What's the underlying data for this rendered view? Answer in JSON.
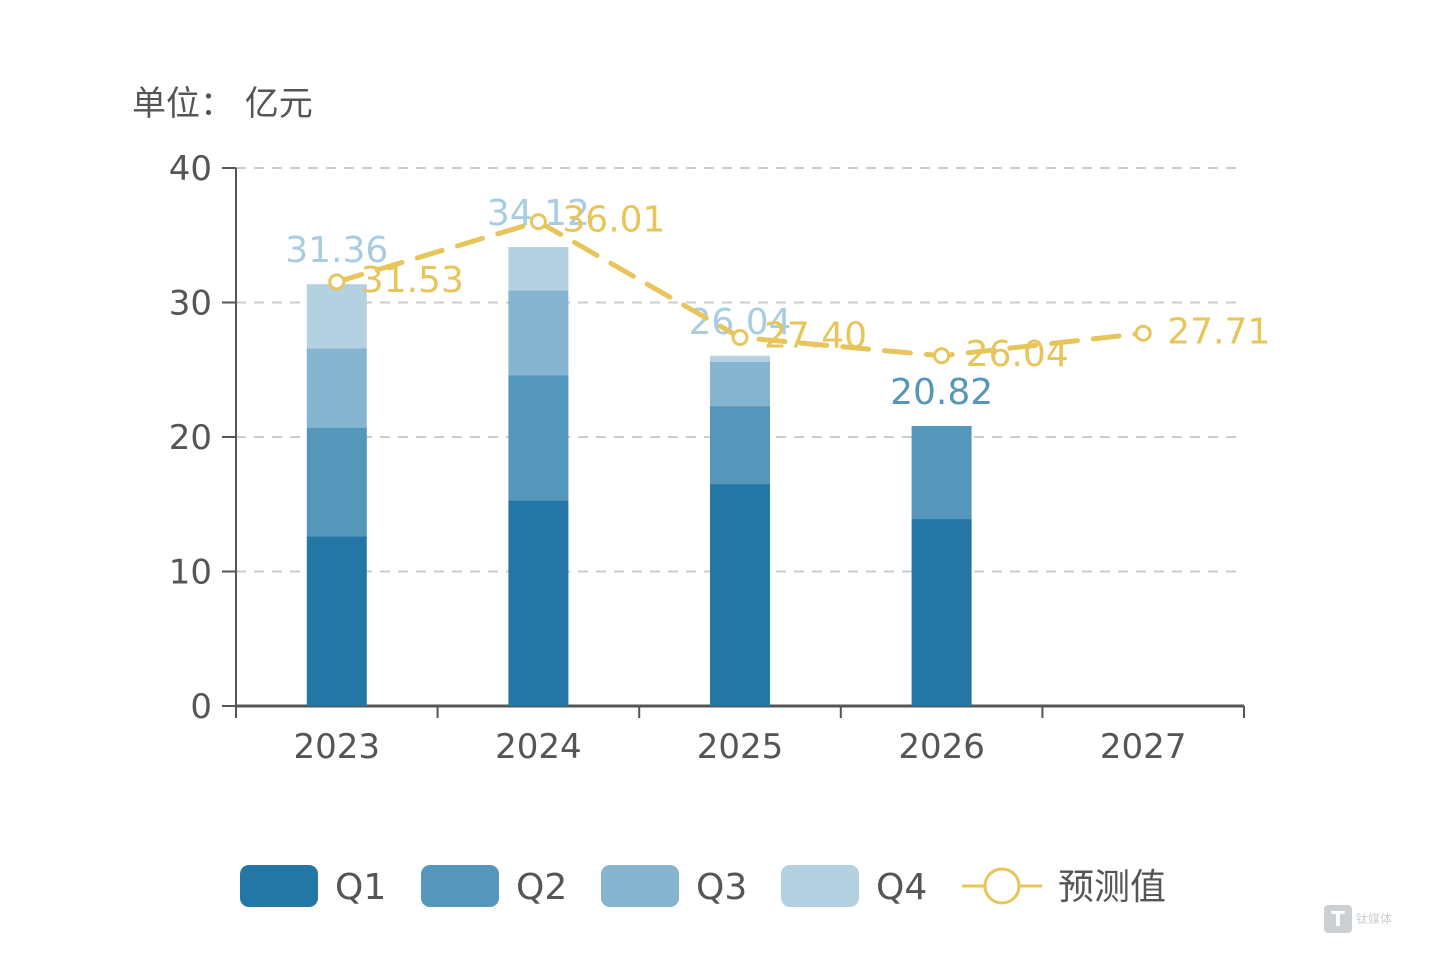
{
  "unit_label": "单位：  亿元",
  "watermark": {
    "logo_letter": "T",
    "text": "钛媒体"
  },
  "chart_data": {
    "type": "bar",
    "stacked": true,
    "categories": [
      "2023",
      "2024",
      "2025",
      "2026",
      "2027"
    ],
    "ylim": [
      0,
      40
    ],
    "yticks": [
      "0",
      "10",
      "20",
      "30",
      "40"
    ],
    "grid": true,
    "legend_position": "bottom",
    "series": [
      {
        "name": "Q1",
        "color": "#2477a4",
        "values": [
          12.6,
          15.3,
          16.5,
          13.9,
          null
        ]
      },
      {
        "name": "Q2",
        "color": "#5597bb",
        "values": [
          8.1,
          9.3,
          5.8,
          6.92,
          null
        ]
      },
      {
        "name": "Q3",
        "color": "#86b5cf",
        "values": [
          5.9,
          6.3,
          3.3,
          null,
          null
        ]
      },
      {
        "name": "Q4",
        "color": "#b3d1e1",
        "values": [
          4.76,
          3.22,
          0.44,
          null,
          null
        ]
      }
    ],
    "totals": [
      "31.36",
      "34.12",
      "26.04",
      "20.82",
      ""
    ],
    "totals_color": [
      "#a8cde2",
      "#a8cde2",
      "#a8cde2",
      "#5597bb",
      ""
    ],
    "forecast": {
      "name": "预测值",
      "color": "#e8c55a",
      "values": [
        31.53,
        36.01,
        27.4,
        26.04,
        27.71
      ],
      "labels": [
        "31.53",
        "36.01",
        "27.40",
        "26.04",
        "27.71"
      ]
    }
  }
}
